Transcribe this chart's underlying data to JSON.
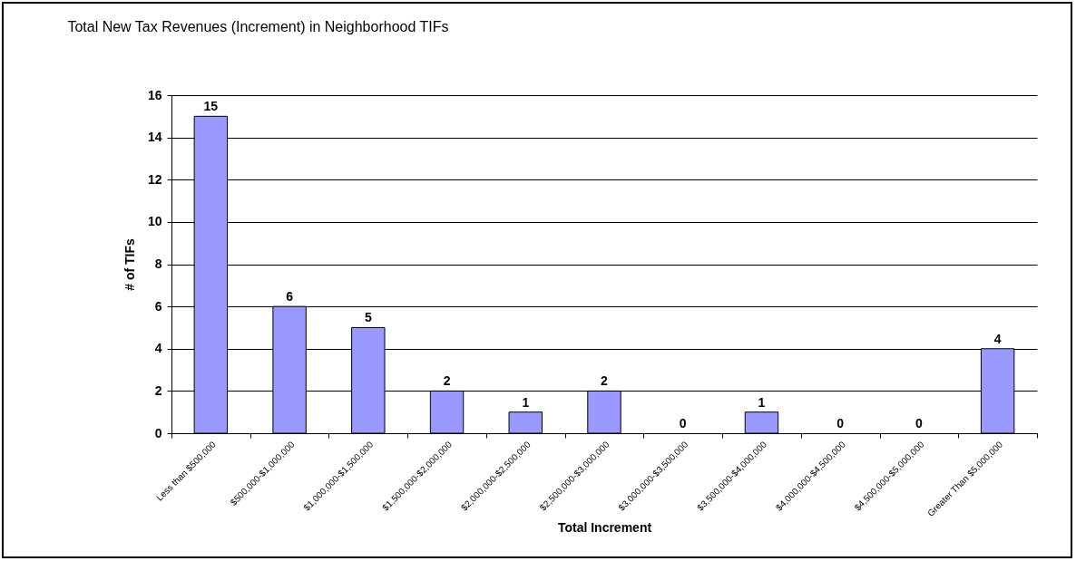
{
  "chart_data": {
    "type": "bar",
    "title": "Total New Tax Revenues (Increment) in Neighborhood TIFs",
    "xlabel": "Total Increment",
    "ylabel": "# of TIFs",
    "categories": [
      "Less than $500,000",
      "$500,000-$1,000,000",
      "$1,000,000-$1,500,000",
      "$1,500,000-$2,000,000",
      "$2,000,000-$2,500,000",
      "$2,500,000-$3,000,000",
      "$3,000,000-$3,500,000",
      "$3,500,000-$4,000,000",
      "$4,000,000-$4,500,000",
      "$4,500,000-$5,000,000",
      "Greater Than $5,000,000"
    ],
    "values": [
      15,
      6,
      5,
      2,
      1,
      2,
      0,
      1,
      0,
      0,
      4
    ],
    "color": "#9999ff",
    "ylim": [
      0,
      16
    ],
    "yticks": [
      0,
      2,
      4,
      6,
      8,
      10,
      12,
      14,
      16
    ],
    "grid": "y",
    "data_labels": true
  }
}
